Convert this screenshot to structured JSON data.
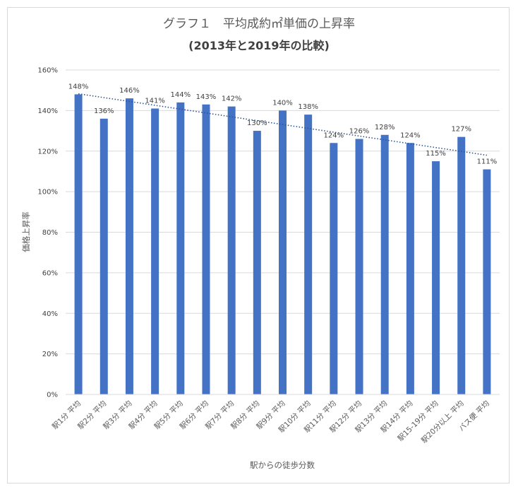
{
  "chart_data": {
    "type": "bar",
    "title": "グラフ１　平均成約㎡単価の上昇率",
    "subtitle": "(2013年と2019年の比較)",
    "xlabel": "駅からの徒歩分数",
    "ylabel": "価格上昇率",
    "ylim": [
      0,
      160
    ],
    "yticks": [
      "0%",
      "20%",
      "40%",
      "60%",
      "80%",
      "100%",
      "120%",
      "140%",
      "160%"
    ],
    "categories": [
      "駅1分 平均",
      "駅2分 平均",
      "駅3分 平均",
      "駅4分 平均",
      "駅5分 平均",
      "駅6分 平均",
      "駅7分 平均",
      "駅8分 平均",
      "駅9分 平均",
      "駅10分 平均",
      "駅11分 平均",
      "駅12分 平均",
      "駅13分 平均",
      "駅14分 平均",
      "駅15-19分 平均",
      "駅20分以上 平均",
      "バス便 平均"
    ],
    "values": [
      148,
      136,
      146,
      141,
      144,
      143,
      142,
      130,
      140,
      138,
      124,
      126,
      128,
      124,
      115,
      127,
      111
    ],
    "data_labels": [
      "148%",
      "136%",
      "146%",
      "141%",
      "144%",
      "143%",
      "142%",
      "130%",
      "140%",
      "138%",
      "124%",
      "126%",
      "128%",
      "124%",
      "115%",
      "127%",
      "111%"
    ],
    "trendline": {
      "type": "linear",
      "style": "dotted"
    },
    "grid": true,
    "bar_color": "#4472c4",
    "trend_color": "#2f5597"
  }
}
